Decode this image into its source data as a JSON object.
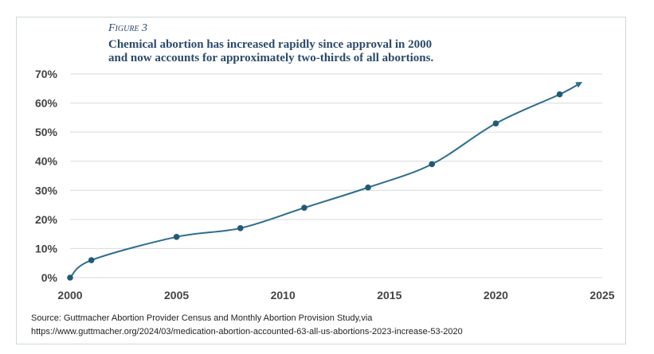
{
  "figure_label": "Figure 3",
  "chart_data": {
    "type": "line",
    "title_lines": [
      "Chemical abortion has increased rapidly since approval in 2000",
      "and now accounts for approximately two-thirds of all abortions."
    ],
    "xlabel": "",
    "ylabel": "",
    "x": [
      2000,
      2001,
      2005,
      2008,
      2011,
      2014,
      2017,
      2020,
      2023,
      2024
    ],
    "y": [
      0,
      6,
      14,
      17,
      24,
      31,
      39,
      53,
      63,
      67
    ],
    "marker_points": 9,
    "xlim": [
      2000,
      2025
    ],
    "ylim": [
      0,
      70
    ],
    "x_ticks": [
      "2000",
      "2005",
      "2010",
      "2015",
      "2020",
      "2025"
    ],
    "y_ticks": [
      "0%",
      "10%",
      "20%",
      "30%",
      "40%",
      "50%",
      "60%",
      "70%"
    ],
    "grid": true,
    "line_color": "#2e6d8e",
    "end_arrow": true
  },
  "source_lines": [
    "Source: Guttmacher Abortion Provider Census and Monthly Abortion Provision Study,via",
    "https://www.guttmacher.org/2024/03/medication-abortion-accounted-63-all-us-abortions-2023-increase-53-2020"
  ]
}
